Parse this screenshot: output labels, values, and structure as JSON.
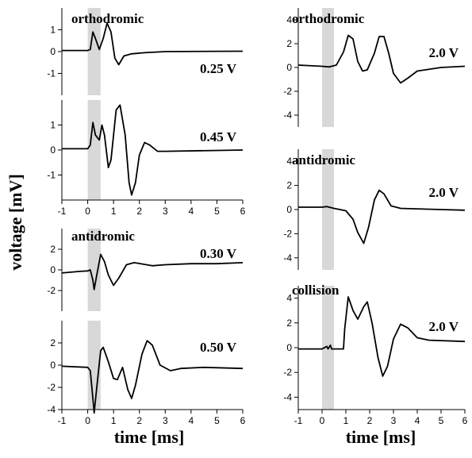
{
  "chart_data": {
    "type": "line",
    "xlabel": "time [ms]",
    "ylabel": "voltage [mV]",
    "xlim": [
      -1,
      6
    ],
    "xticks": [
      "-1",
      "0",
      "1",
      "2",
      "3",
      "4",
      "5",
      "6"
    ],
    "stimulus_window_ms": [
      0,
      0.5
    ],
    "panels": [
      {
        "label": "orthodromic",
        "voltage": "0.25 V",
        "ylim": [
          -2,
          2
        ],
        "yticks": [
          "1",
          "0",
          "-1"
        ],
        "points": [
          [
            -1,
            0.05
          ],
          [
            0,
            0.05
          ],
          [
            0.1,
            0.1
          ],
          [
            0.2,
            0.9
          ],
          [
            0.3,
            0.6
          ],
          [
            0.45,
            0.1
          ],
          [
            0.6,
            0.6
          ],
          [
            0.75,
            1.3
          ],
          [
            0.9,
            0.9
          ],
          [
            1.05,
            -0.3
          ],
          [
            1.2,
            -0.6
          ],
          [
            1.4,
            -0.2
          ],
          [
            1.7,
            -0.1
          ],
          [
            2.2,
            -0.05
          ],
          [
            3,
            0
          ],
          [
            6,
            0.02
          ]
        ]
      },
      {
        "label": "",
        "voltage": "0.45 V",
        "ylim": [
          -2,
          2
        ],
        "yticks": [
          "1",
          "0",
          "-1"
        ],
        "points": [
          [
            -1,
            0.05
          ],
          [
            0,
            0.05
          ],
          [
            0.1,
            0.2
          ],
          [
            0.2,
            1.1
          ],
          [
            0.3,
            0.6
          ],
          [
            0.45,
            0.4
          ],
          [
            0.55,
            1.0
          ],
          [
            0.65,
            0.6
          ],
          [
            0.8,
            -0.7
          ],
          [
            0.9,
            -0.4
          ],
          [
            1.1,
            1.6
          ],
          [
            1.25,
            1.8
          ],
          [
            1.45,
            0.6
          ],
          [
            1.6,
            -1.3
          ],
          [
            1.7,
            -1.8
          ],
          [
            1.85,
            -1.3
          ],
          [
            2.0,
            -0.2
          ],
          [
            2.2,
            0.3
          ],
          [
            2.4,
            0.2
          ],
          [
            2.7,
            -0.05
          ],
          [
            3,
            -0.05
          ],
          [
            6,
            0
          ]
        ]
      },
      {
        "label": "antidromic",
        "voltage": "0.30 V",
        "ylim": [
          -4,
          4
        ],
        "yticks": [
          "2",
          "0",
          "-2"
        ],
        "points": [
          [
            -1,
            -0.3
          ],
          [
            -0.3,
            -0.15
          ],
          [
            0,
            -0.1
          ],
          [
            0.1,
            0
          ],
          [
            0.2,
            -1.0
          ],
          [
            0.25,
            -1.9
          ],
          [
            0.35,
            -0.5
          ],
          [
            0.5,
            1.5
          ],
          [
            0.65,
            0.8
          ],
          [
            0.8,
            -0.5
          ],
          [
            1.0,
            -1.5
          ],
          [
            1.2,
            -0.8
          ],
          [
            1.5,
            0.5
          ],
          [
            1.8,
            0.7
          ],
          [
            2.5,
            0.4
          ],
          [
            3,
            0.5
          ],
          [
            4,
            0.6
          ],
          [
            5,
            0.6
          ],
          [
            6,
            0.7
          ]
        ]
      },
      {
        "label": "",
        "voltage": "0.50 V",
        "ylim": [
          -4,
          4
        ],
        "yticks": [
          "2",
          "0",
          "-2",
          "-4"
        ],
        "points": [
          [
            -1,
            -0.1
          ],
          [
            0,
            -0.2
          ],
          [
            0.1,
            -0.5
          ],
          [
            0.2,
            -3.0
          ],
          [
            0.25,
            -4.3
          ],
          [
            0.35,
            -2
          ],
          [
            0.5,
            1.3
          ],
          [
            0.6,
            1.6
          ],
          [
            0.8,
            0.3
          ],
          [
            1.0,
            -1.2
          ],
          [
            1.15,
            -1.3
          ],
          [
            1.35,
            -0.2
          ],
          [
            1.55,
            -2.2
          ],
          [
            1.7,
            -3.0
          ],
          [
            1.85,
            -1.8
          ],
          [
            2.1,
            1.0
          ],
          [
            2.3,
            2.2
          ],
          [
            2.5,
            1.8
          ],
          [
            2.8,
            0
          ],
          [
            3.2,
            -0.5
          ],
          [
            3.6,
            -0.3
          ],
          [
            4.5,
            -0.2
          ],
          [
            6,
            -0.3
          ]
        ]
      },
      {
        "label": "orthodromic",
        "voltage": "2.0 V",
        "ylim": [
          -5,
          5
        ],
        "yticks": [
          "4",
          "2",
          "0",
          "-2",
          "-4"
        ],
        "points": [
          [
            -1,
            0.2
          ],
          [
            0,
            0.1
          ],
          [
            0.3,
            0.05
          ],
          [
            0.6,
            0.2
          ],
          [
            0.9,
            1.3
          ],
          [
            1.1,
            2.7
          ],
          [
            1.3,
            2.4
          ],
          [
            1.5,
            0.5
          ],
          [
            1.7,
            -0.3
          ],
          [
            1.9,
            -0.2
          ],
          [
            2.2,
            1.2
          ],
          [
            2.4,
            2.6
          ],
          [
            2.6,
            2.6
          ],
          [
            2.8,
            1.2
          ],
          [
            3.0,
            -0.5
          ],
          [
            3.3,
            -1.3
          ],
          [
            3.6,
            -0.9
          ],
          [
            4,
            -0.3
          ],
          [
            5,
            0
          ],
          [
            6,
            0.1
          ]
        ]
      },
      {
        "label": "antidromic",
        "voltage": "2.0 V",
        "ylim": [
          -5,
          5
        ],
        "yticks": [
          "4",
          "2",
          "0",
          "-2",
          "-4"
        ],
        "points": [
          [
            -1,
            0.2
          ],
          [
            0,
            0.2
          ],
          [
            0.2,
            0.25
          ],
          [
            0.5,
            0.1
          ],
          [
            1.0,
            -0.1
          ],
          [
            1.3,
            -0.8
          ],
          [
            1.5,
            -1.9
          ],
          [
            1.75,
            -2.8
          ],
          [
            1.95,
            -1.5
          ],
          [
            2.2,
            0.8
          ],
          [
            2.4,
            1.6
          ],
          [
            2.6,
            1.3
          ],
          [
            2.9,
            0.3
          ],
          [
            3.3,
            0.1
          ],
          [
            5,
            0
          ],
          [
            6,
            -0.05
          ]
        ]
      },
      {
        "label": "collision",
        "voltage": "2.0 V",
        "ylim": [
          -5,
          5
        ],
        "yticks": [
          "4",
          "2",
          "0",
          "-2",
          "-4"
        ],
        "points": [
          [
            -1,
            -0.1
          ],
          [
            0,
            -0.1
          ],
          [
            0.2,
            0.1
          ],
          [
            0.25,
            -0.1
          ],
          [
            0.35,
            0.2
          ],
          [
            0.4,
            -0.1
          ],
          [
            0.9,
            -0.1
          ],
          [
            0.95,
            1.5
          ],
          [
            1.1,
            4.1
          ],
          [
            1.3,
            3.0
          ],
          [
            1.5,
            2.3
          ],
          [
            1.75,
            3.3
          ],
          [
            1.9,
            3.7
          ],
          [
            2.1,
            2.0
          ],
          [
            2.35,
            -0.8
          ],
          [
            2.55,
            -2.3
          ],
          [
            2.75,
            -1.5
          ],
          [
            3.0,
            0.7
          ],
          [
            3.3,
            1.9
          ],
          [
            3.6,
            1.6
          ],
          [
            4,
            0.8
          ],
          [
            4.5,
            0.6
          ],
          [
            6,
            0.5
          ]
        ]
      }
    ]
  }
}
